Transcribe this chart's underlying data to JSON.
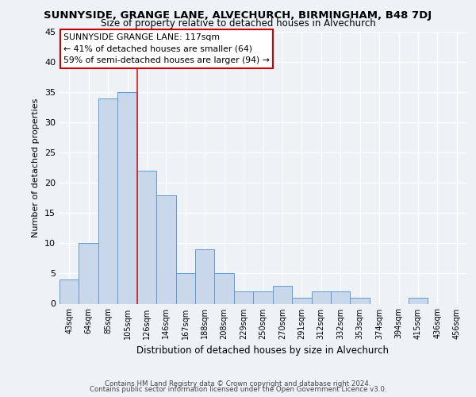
{
  "title": "SUNNYSIDE, GRANGE LANE, ALVECHURCH, BIRMINGHAM, B48 7DJ",
  "subtitle": "Size of property relative to detached houses in Alvechurch",
  "xlabel": "Distribution of detached houses by size in Alvechurch",
  "ylabel": "Number of detached properties",
  "bin_labels": [
    "43sqm",
    "64sqm",
    "85sqm",
    "105sqm",
    "126sqm",
    "146sqm",
    "167sqm",
    "188sqm",
    "208sqm",
    "229sqm",
    "250sqm",
    "270sqm",
    "291sqm",
    "312sqm",
    "332sqm",
    "353sqm",
    "374sqm",
    "394sqm",
    "415sqm",
    "436sqm",
    "456sqm"
  ],
  "counts": [
    4,
    10,
    34,
    35,
    22,
    18,
    5,
    9,
    5,
    2,
    2,
    3,
    1,
    2,
    2,
    1,
    0,
    0,
    1,
    0,
    0
  ],
  "bar_color": "#c8d8ea",
  "bar_edge_color": "#5b9bd5",
  "property_label": "SUNNYSIDE GRANGE LANE: 117sqm",
  "pct_smaller": 41,
  "n_smaller": 64,
  "pct_larger_semi": 59,
  "n_larger_semi": 94,
  "vline_color": "#cc2222",
  "annotation_edge": "#cc0000",
  "ylim": [
    0,
    45
  ],
  "yticks": [
    0,
    5,
    10,
    15,
    20,
    25,
    30,
    35,
    40,
    45
  ],
  "footer_line1": "Contains HM Land Registry data © Crown copyright and database right 2024.",
  "footer_line2": "Contains public sector information licensed under the Open Government Licence v3.0.",
  "bg_color": "#eef2f7",
  "grid_color": "#ffffff",
  "font_family": "DejaVu Sans"
}
